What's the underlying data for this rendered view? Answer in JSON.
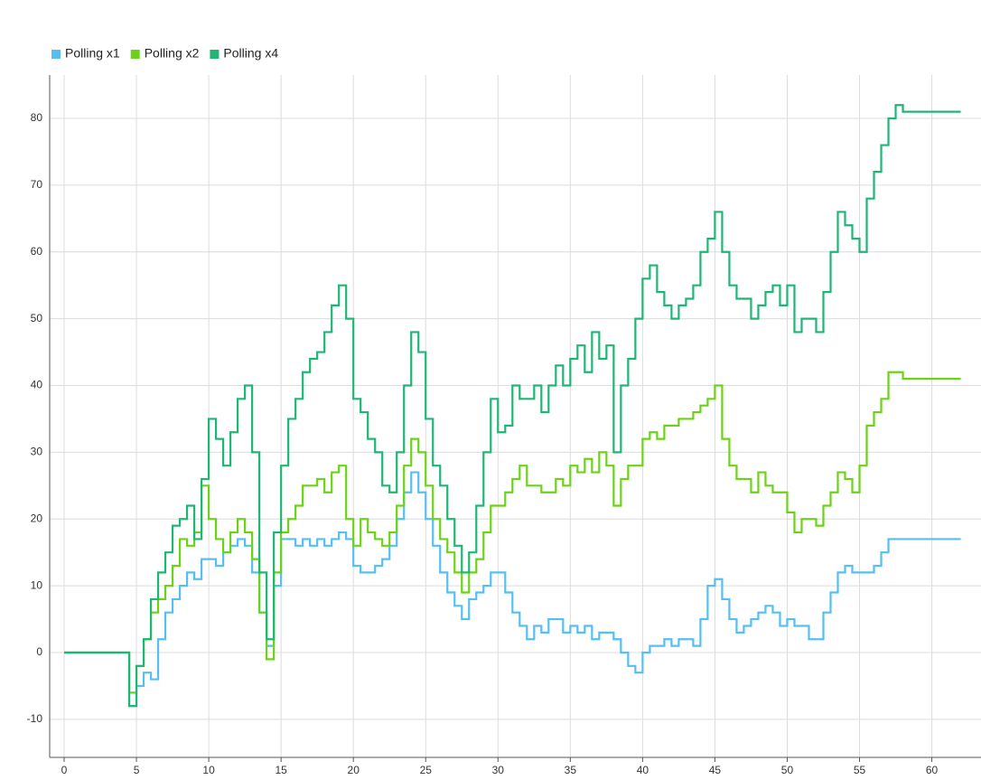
{
  "chart_data": {
    "type": "line",
    "step": true,
    "x": [
      0,
      4,
      4.5,
      5,
      5.5,
      6,
      6.5,
      7,
      7.5,
      8,
      8.5,
      9,
      9.5,
      10,
      10.5,
      11,
      11.5,
      12,
      12.5,
      13,
      13.5,
      14,
      14.5,
      15,
      15.5,
      16,
      16.5,
      17,
      17.5,
      18,
      18.5,
      19,
      19.5,
      20,
      20.5,
      21,
      21.5,
      22,
      22.5,
      23,
      23.5,
      24,
      24.5,
      25,
      25.5,
      26,
      26.5,
      27,
      27.5,
      28,
      28.5,
      29,
      29.5,
      30,
      30.5,
      31,
      31.5,
      32,
      32.5,
      33,
      33.5,
      34,
      34.5,
      35,
      35.5,
      36,
      36.5,
      37,
      37.5,
      38,
      38.5,
      39,
      39.5,
      40,
      40.5,
      41,
      41.5,
      42,
      42.5,
      43,
      43.5,
      44,
      44.5,
      45,
      45.5,
      46,
      46.5,
      47,
      47.5,
      48,
      48.5,
      49,
      49.5,
      50,
      50.5,
      51,
      51.5,
      52,
      52.5,
      53,
      53.5,
      54,
      54.5,
      55,
      55.5,
      56,
      56.5,
      57,
      57.5,
      58,
      62
    ],
    "series": [
      {
        "name": "Polling x1",
        "color": "#56bff0",
        "values": [
          0,
          0,
          -8,
          -5,
          -3,
          -4,
          2,
          6,
          8,
          10,
          12,
          11,
          14,
          14,
          13,
          15,
          16,
          17,
          16,
          12,
          6,
          1,
          10,
          17,
          17,
          16,
          17,
          16,
          17,
          16,
          17,
          18,
          17,
          13,
          12,
          12,
          13,
          14,
          16,
          20,
          24,
          27,
          24,
          20,
          16,
          12,
          9,
          7,
          5,
          8,
          9,
          10,
          12,
          12,
          9,
          6,
          4,
          2,
          4,
          3,
          5,
          5,
          3,
          4,
          3,
          4,
          2,
          3,
          3,
          2,
          0,
          -2,
          -3,
          0,
          1,
          1,
          2,
          1,
          2,
          2,
          1,
          5,
          10,
          11,
          8,
          5,
          3,
          4,
          5,
          6,
          7,
          6,
          4,
          5,
          4,
          4,
          2,
          2,
          6,
          9,
          12,
          13,
          12,
          12,
          12,
          13,
          15,
          17,
          17,
          17,
          17
        ]
      },
      {
        "name": "Polling x2",
        "color": "#6cd219",
        "values": [
          0,
          0,
          -6,
          -2,
          2,
          6,
          8,
          10,
          13,
          17,
          16,
          18,
          25,
          20,
          17,
          15,
          18,
          20,
          18,
          14,
          6,
          -1,
          12,
          18,
          20,
          22,
          25,
          25,
          26,
          24,
          27,
          28,
          20,
          16,
          20,
          18,
          17,
          16,
          18,
          22,
          28,
          32,
          30,
          25,
          20,
          17,
          15,
          12,
          9,
          12,
          14,
          18,
          22,
          22,
          24,
          26,
          28,
          25,
          25,
          24,
          24,
          26,
          25,
          28,
          27,
          29,
          27,
          30,
          28,
          22,
          26,
          28,
          28,
          32,
          33,
          32,
          34,
          34,
          35,
          35,
          36,
          37,
          38,
          40,
          32,
          28,
          26,
          26,
          24,
          27,
          25,
          24,
          24,
          21,
          18,
          20,
          20,
          19,
          22,
          24,
          27,
          26,
          24,
          28,
          34,
          36,
          38,
          42,
          42,
          41,
          41
        ]
      },
      {
        "name": "Polling x4",
        "color": "#20b575",
        "values": [
          0,
          0,
          -8,
          -2,
          2,
          8,
          12,
          15,
          19,
          20,
          22,
          17,
          26,
          35,
          32,
          28,
          33,
          38,
          40,
          30,
          12,
          2,
          18,
          28,
          35,
          38,
          42,
          44,
          45,
          48,
          52,
          55,
          50,
          38,
          36,
          32,
          30,
          25,
          24,
          30,
          40,
          48,
          45,
          35,
          28,
          25,
          20,
          16,
          12,
          15,
          22,
          30,
          38,
          33,
          34,
          40,
          38,
          38,
          40,
          36,
          40,
          43,
          40,
          44,
          46,
          42,
          48,
          44,
          46,
          30,
          40,
          44,
          50,
          56,
          58,
          54,
          52,
          50,
          52,
          53,
          55,
          60,
          62,
          66,
          60,
          55,
          53,
          53,
          50,
          52,
          54,
          55,
          52,
          55,
          48,
          50,
          50,
          48,
          54,
          60,
          66,
          64,
          62,
          60,
          68,
          72,
          76,
          80,
          82,
          81,
          81
        ]
      }
    ],
    "xlim": [
      -1,
      63.4
    ],
    "ylim": [
      -15.7,
      86.5
    ],
    "xticks": [
      0,
      5,
      10,
      15,
      20,
      25,
      30,
      35,
      40,
      45,
      50,
      55,
      60
    ],
    "yticks": [
      -10,
      0,
      10,
      20,
      30,
      40,
      50,
      60,
      70,
      80
    ],
    "grid": true,
    "legend": "top-left"
  }
}
